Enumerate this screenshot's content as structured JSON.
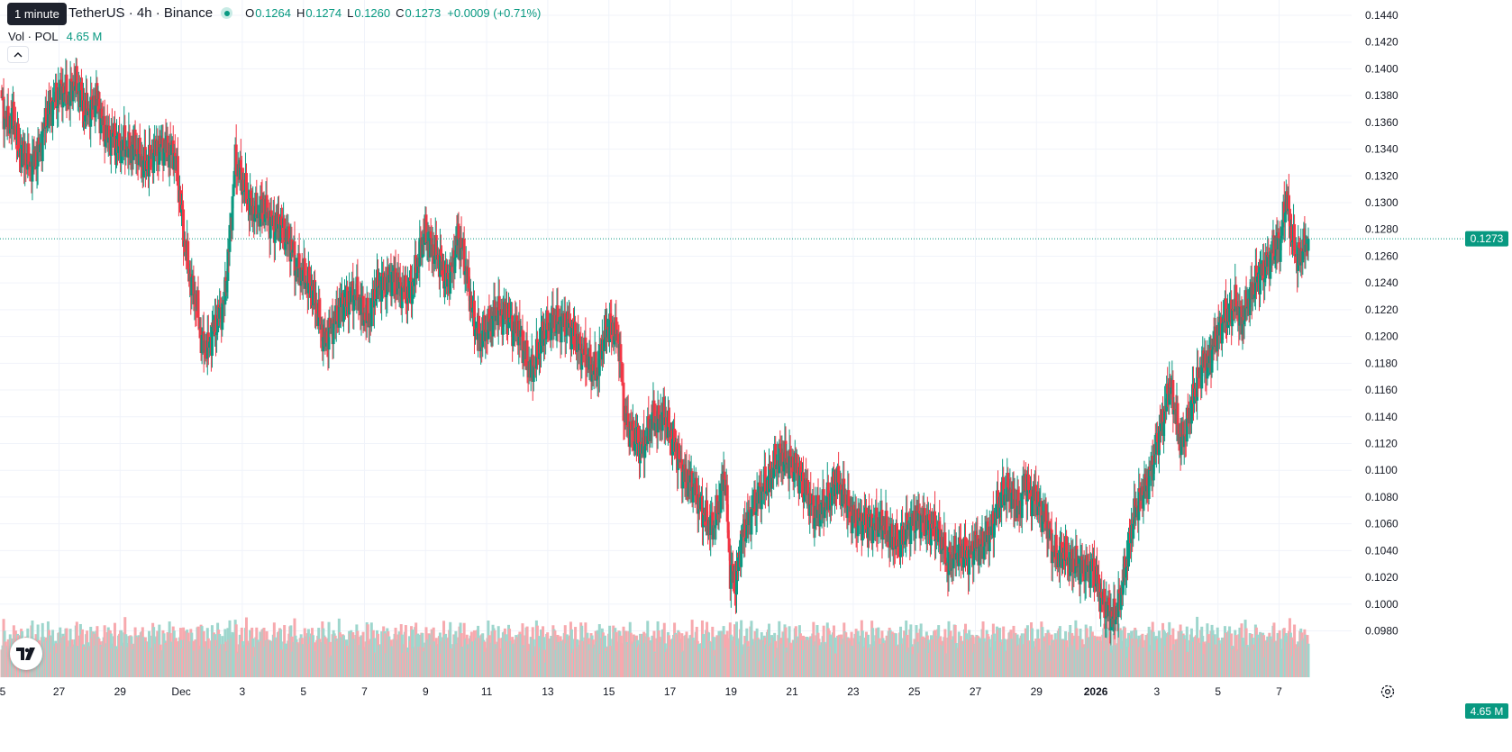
{
  "legend": {
    "tooltip": "1 minute",
    "symbol": "TetherUS · 4h · Binance",
    "open_label": "O",
    "open": "0.1264",
    "high_label": "H",
    "high": "0.1274",
    "low_label": "L",
    "low": "0.1260",
    "close_label": "C",
    "close": "0.1273",
    "change": "+0.0009 (+0.71%)",
    "volume_label": "Vol · POL",
    "volume_value": "4.65 M",
    "collapse_glyph": "^"
  },
  "price_axis": {
    "labels": [
      "0.1440",
      "0.1420",
      "0.1400",
      "0.1380",
      "0.1360",
      "0.1340",
      "0.1320",
      "0.1300",
      "0.1280",
      "0.1260",
      "0.1240",
      "0.1220",
      "0.1200",
      "0.1180",
      "0.1160",
      "0.1140",
      "0.1120",
      "0.1100",
      "0.1080",
      "0.1060",
      "0.1040",
      "0.1020",
      "0.1000",
      "0.0980"
    ],
    "last_price_label": "0.1273",
    "volume_label": "4.65 M"
  },
  "time_axis": {
    "labels": [
      "5",
      "27",
      "29",
      "Dec",
      "3",
      "5",
      "7",
      "9",
      "11",
      "13",
      "15",
      "17",
      "19",
      "21",
      "23",
      "25",
      "27",
      "29",
      "2026",
      "3",
      "5",
      "7"
    ],
    "bold_label": "2026"
  },
  "colors": {
    "up": "#089981",
    "down": "#f23645",
    "up_volume": "#9ed6cd",
    "down_volume": "#f7a9ae",
    "grid": "#f0f3fa",
    "text": "#131722"
  },
  "icons": {
    "logo": "tradingview-logo-icon",
    "settings": "gear-icon",
    "live": "live-status-dot-icon"
  },
  "chart_data": {
    "type": "candlestick",
    "title": "TetherUS · 4h · Binance",
    "interval": "4h",
    "ylim": [
      0.0968,
      0.1445
    ],
    "last_price": 0.1273,
    "x_start": "2025-11-25",
    "x_end": "2026-01-07",
    "grid": true,
    "price_axis_position": "right",
    "anchors": [
      [
        0.1372,
        0.1358,
        0.1365,
        0.134,
        0.1335,
        0.1328,
        0.1332,
        0.1342,
        0.1365,
        0.1372,
        0.138,
        0.1385,
        0.1378,
        0.139,
        0.1382,
        0.1368,
        0.137,
        0.1378,
        0.136,
        0.1348,
        0.135,
        0.134,
        0.1345,
        0.1338,
        0.1342,
        0.1332,
        0.1328,
        0.1335,
        0.134,
        0.1342,
        0.1338
      ],
      [
        0.1338,
        0.1305,
        0.1265,
        0.124,
        0.1225,
        0.1195,
        0.119,
        0.1205,
        0.1215,
        0.1225,
        0.1275,
        0.133,
        0.132,
        0.1305,
        0.1295,
        0.1292,
        0.1298,
        0.1288,
        0.1282,
        0.1285,
        0.1275,
        0.1268,
        0.125,
        0.1248,
        0.124,
        0.1232,
        0.1215,
        0.1195,
        0.1205,
        0.1212,
        0.1225
      ],
      [
        0.1225,
        0.1232,
        0.123,
        0.1218,
        0.1212,
        0.1232,
        0.124,
        0.1238,
        0.1245,
        0.124,
        0.1235,
        0.1232,
        0.124,
        0.126,
        0.1278,
        0.1268,
        0.1262,
        0.1255,
        0.124,
        0.1252,
        0.1275,
        0.1262,
        0.1235,
        0.121,
        0.1198,
        0.1205,
        0.121,
        0.122,
        0.1215,
        0.1218,
        0.1205
      ],
      [
        0.1205,
        0.1188,
        0.1175,
        0.118,
        0.12,
        0.1205,
        0.1212,
        0.121,
        0.121,
        0.1208,
        0.12,
        0.119,
        0.1185,
        0.1178,
        0.1172,
        0.1195,
        0.1208,
        0.1205,
        0.1195,
        0.114,
        0.113,
        0.1125,
        0.1115,
        0.1125,
        0.114,
        0.1135,
        0.1142,
        0.113,
        0.1118,
        0.1105,
        0.1092
      ],
      [
        0.1092,
        0.108,
        0.107,
        0.106,
        0.1058,
        0.1075,
        0.11,
        0.1025,
        0.1015,
        0.1048,
        0.106,
        0.107,
        0.108,
        0.1088,
        0.1092,
        0.1105,
        0.111,
        0.1108,
        0.1105,
        0.11,
        0.109,
        0.1082,
        0.1068,
        0.107,
        0.1075,
        0.108,
        0.1092,
        0.1085,
        0.1075,
        0.1065,
        0.1062
      ],
      [
        0.1062,
        0.106,
        0.1058,
        0.1062,
        0.1055,
        0.105,
        0.1045,
        0.105,
        0.1058,
        0.1062,
        0.1065,
        0.106,
        0.1058,
        0.1055,
        0.1048,
        0.103,
        0.1035,
        0.104,
        0.1038,
        0.1035,
        0.1045,
        0.1042,
        0.105,
        0.1055,
        0.1072,
        0.1082,
        0.1085,
        0.1078,
        0.107,
        0.1092,
        0.108
      ],
      [
        0.108,
        0.1068,
        0.106,
        0.104,
        0.1035,
        0.1038,
        0.1032,
        0.103,
        0.1028,
        0.1025,
        0.1028,
        0.1018,
        0.1,
        0.0995,
        0.099,
        0.1002,
        0.1025,
        0.1052,
        0.1072,
        0.1082,
        0.109,
        0.1105,
        0.1125,
        0.114,
        0.1165,
        0.1145,
        0.112,
        0.113,
        0.115,
        0.1165,
        0.118
      ],
      [
        0.118,
        0.1195,
        0.1205,
        0.1215,
        0.1218,
        0.1225,
        0.121,
        0.1225,
        0.1235,
        0.1245,
        0.125,
        0.1258,
        0.1268,
        0.127,
        0.1305,
        0.1275,
        0.1258,
        0.1265,
        0.1273
      ]
    ]
  }
}
